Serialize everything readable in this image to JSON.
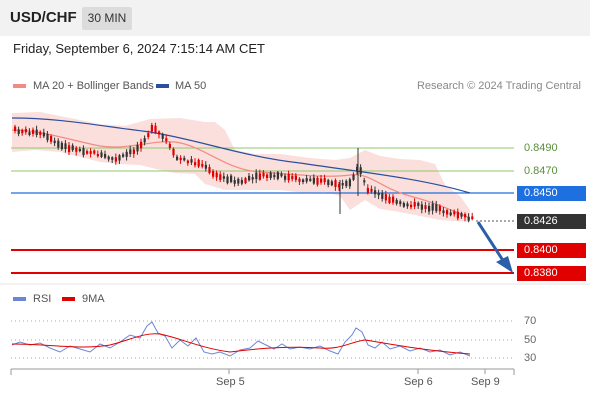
{
  "header": {
    "symbol": "USD/CHF",
    "timeframe": "30 MIN",
    "datetime": "Friday, September 6, 2024 7:15:14 AM CET"
  },
  "legend": {
    "ma20_label": "MA 20 + Bollinger Bands",
    "ma20_color": "#f28b82",
    "ma50_label": "MA 50",
    "ma50_color": "#2b4f9e",
    "credit": "Research © 2024 Trading Central"
  },
  "price_levels": {
    "resistance_2": "0.8490",
    "resistance_1": "0.8470",
    "pivot": "0.8450",
    "current": "0.8426",
    "support_1": "0.8400",
    "support_2": "0.8380"
  },
  "colors": {
    "resistance": "#8fc96b",
    "pivot": "#1e6fe0",
    "support": "#e00000",
    "current": "#333333",
    "bull_candle": "#e00000",
    "bear_candle": "#333333",
    "arrow": "#2b5fa8"
  },
  "rsi": {
    "rsi_label": "RSI",
    "ma_label": "9MA",
    "rsi_color": "#6b86d6",
    "ma_color": "#e00000",
    "levels": [
      "70",
      "50",
      "30"
    ]
  },
  "x_axis": {
    "labels": [
      "Sep 5",
      "Sep 6",
      "Sep 9"
    ]
  }
}
